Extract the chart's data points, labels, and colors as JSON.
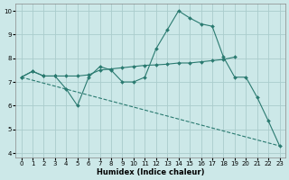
{
  "xlabel": "Humidex (Indice chaleur)",
  "xlim": [
    -0.5,
    23.5
  ],
  "ylim": [
    3.8,
    10.3
  ],
  "yticks": [
    4,
    5,
    6,
    7,
    8,
    9,
    10
  ],
  "xticks": [
    0,
    1,
    2,
    3,
    4,
    5,
    6,
    7,
    8,
    9,
    10,
    11,
    12,
    13,
    14,
    15,
    16,
    17,
    18,
    19,
    20,
    21,
    22,
    23
  ],
  "bg_color": "#cce8e8",
  "grid_color": "#aacccc",
  "line_color": "#2a7a70",
  "line1_x": [
    0,
    1,
    2,
    3,
    4,
    5,
    6,
    7,
    8,
    9,
    10,
    11,
    12,
    13,
    14,
    15,
    16,
    17,
    18,
    19,
    20,
    21,
    22,
    23
  ],
  "line1_y": [
    7.2,
    7.45,
    7.25,
    7.25,
    6.7,
    6.0,
    7.2,
    7.65,
    7.5,
    7.0,
    7.0,
    7.2,
    8.4,
    9.2,
    10.0,
    9.7,
    9.45,
    9.35,
    8.05,
    7.2,
    7.2,
    6.35,
    5.35,
    4.3
  ],
  "line2_x": [
    0,
    1,
    2,
    3,
    4,
    5,
    6,
    7,
    8,
    9,
    10,
    11,
    12,
    13,
    14,
    15,
    16,
    17,
    18,
    19
  ],
  "line2_y": [
    7.2,
    7.45,
    7.25,
    7.25,
    7.25,
    7.25,
    7.3,
    7.5,
    7.55,
    7.6,
    7.65,
    7.7,
    7.72,
    7.75,
    7.8,
    7.8,
    7.85,
    7.9,
    7.95,
    8.05
  ],
  "line3_x": [
    0,
    23
  ],
  "line3_y": [
    7.2,
    4.3
  ],
  "markersize": 2.0
}
